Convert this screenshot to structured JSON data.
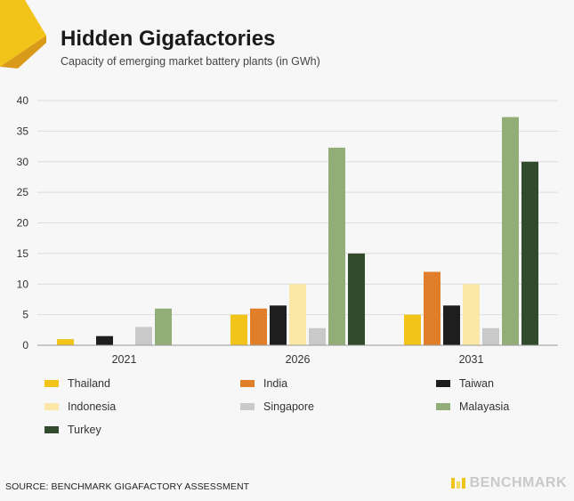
{
  "header": {
    "title": "Hidden Gigafactories",
    "subtitle": "Capacity of emerging market battery plants (in GWh)"
  },
  "chart_data": {
    "type": "bar",
    "categories": [
      "2021",
      "2026",
      "2031"
    ],
    "ylim": [
      0,
      40
    ],
    "yticks": [
      0,
      5,
      10,
      15,
      20,
      25,
      30,
      35,
      40
    ],
    "grid": true,
    "legend_placement": "bottom",
    "series": [
      {
        "name": "Thailand",
        "color": "#f2c318",
        "values": [
          1,
          5,
          5
        ]
      },
      {
        "name": "India",
        "color": "#e07e2a",
        "values": [
          0,
          6,
          12
        ]
      },
      {
        "name": "Taiwan",
        "color": "#1e1e1e",
        "values": [
          1.5,
          6.5,
          6.5
        ]
      },
      {
        "name": "Indonesia",
        "color": "#fbe8a6",
        "values": [
          0,
          10,
          10
        ]
      },
      {
        "name": "Singapore",
        "color": "#c9c9c9",
        "values": [
          3,
          2.8,
          2.8
        ]
      },
      {
        "name": "Malayasia",
        "color": "#93ad78",
        "values": [
          6,
          32.3,
          37.3
        ]
      },
      {
        "name": "Turkey",
        "color": "#334b2d",
        "values": [
          0,
          15,
          30
        ]
      }
    ]
  },
  "footer": {
    "source": "SOURCE: BENCHMARK GIGAFACTORY ASSESSMENT",
    "brand": "BENCHMARK"
  },
  "colors": {
    "corner_accent": "#f2c318",
    "corner_shadow": "#d99a1a"
  }
}
